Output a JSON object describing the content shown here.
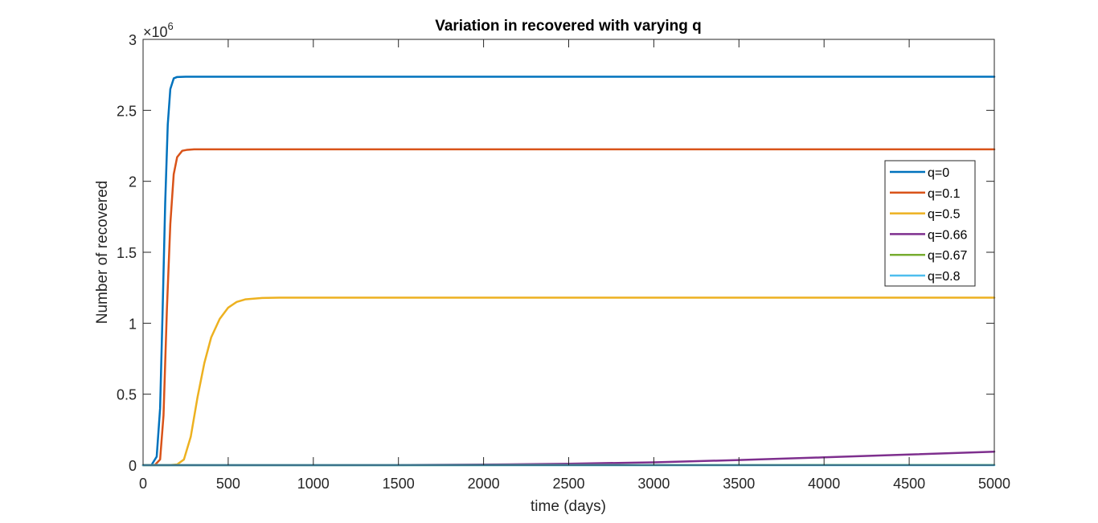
{
  "chart_data": {
    "type": "line",
    "title": "Variation in recovered with varying q",
    "xlabel": "time (days)",
    "ylabel": "Number of recovered",
    "xlim": [
      0,
      5000
    ],
    "ylim": [
      0,
      3000000
    ],
    "x_ticks": [
      0,
      500,
      1000,
      1500,
      2000,
      2500,
      3000,
      3500,
      4000,
      4500,
      5000
    ],
    "x_tick_labels": [
      "0",
      "500",
      "1000",
      "1500",
      "2000",
      "2500",
      "3000",
      "3500",
      "4000",
      "4500",
      "5000"
    ],
    "y_ticks": [
      0,
      500000,
      1000000,
      1500000,
      2000000,
      2500000,
      3000000
    ],
    "y_tick_labels": [
      "0",
      "0.5",
      "1",
      "1.5",
      "2",
      "2.5",
      "3"
    ],
    "y_exponent": {
      "base": "×10",
      "power": "6"
    },
    "grid": false,
    "legend_position": "right",
    "series": [
      {
        "name": "q=0",
        "color": "#0072BD",
        "x": [
          0,
          50,
          80,
          100,
          115,
          130,
          145,
          160,
          180,
          200,
          250,
          5000
        ],
        "y": [
          0,
          2000,
          60000,
          400000,
          1100000,
          1850000,
          2400000,
          2650000,
          2725000,
          2735000,
          2737000,
          2737000
        ]
      },
      {
        "name": "q=0.1",
        "color": "#D95319",
        "x": [
          0,
          70,
          100,
          120,
          140,
          160,
          180,
          200,
          230,
          260,
          300,
          5000
        ],
        "y": [
          0,
          2000,
          40000,
          350000,
          1100000,
          1700000,
          2050000,
          2170000,
          2215000,
          2222000,
          2225000,
          2225000
        ]
      },
      {
        "name": "q=0.5",
        "color": "#EDB120",
        "x": [
          0,
          150,
          200,
          240,
          280,
          320,
          360,
          400,
          450,
          500,
          550,
          600,
          700,
          800,
          5000
        ],
        "y": [
          0,
          0,
          5000,
          40000,
          200000,
          480000,
          720000,
          900000,
          1030000,
          1110000,
          1150000,
          1168000,
          1178000,
          1180000,
          1180000
        ]
      },
      {
        "name": "q=0.66",
        "color": "#7E2F8E",
        "x": [
          0,
          1000,
          1500,
          2000,
          2500,
          3000,
          3500,
          4000,
          4500,
          5000
        ],
        "y": [
          0,
          0,
          1000,
          4000,
          10000,
          20000,
          36000,
          55000,
          75000,
          95000
        ]
      },
      {
        "name": "q=0.67",
        "color": "#77AC30",
        "x": [
          0,
          2500,
          5000
        ],
        "y": [
          0,
          500,
          1500
        ]
      },
      {
        "name": "q=0.8",
        "color": "#4DBEEE",
        "x": [
          0,
          5000
        ],
        "y": [
          0,
          0
        ]
      }
    ]
  }
}
